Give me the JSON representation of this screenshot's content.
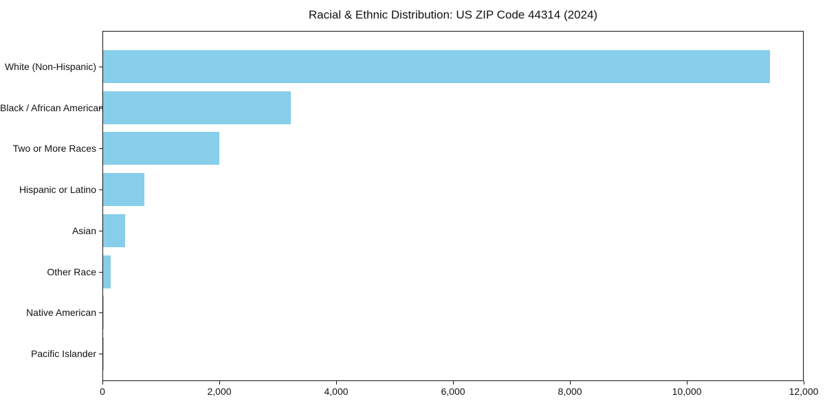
{
  "page": {
    "background_color": "#ffffff",
    "text_color": "#111111",
    "axis_color": "#111111"
  },
  "chart_data": {
    "type": "bar",
    "orientation": "horizontal",
    "title": "Racial & Ethnic Distribution: US ZIP Code 44314 (2024)",
    "xlabel": "",
    "ylabel": "",
    "grid": false,
    "bar_color": "#87CEEB",
    "xlim": [
      0,
      12000
    ],
    "categories": [
      "White (Non-Hispanic)",
      "Black / African American",
      "Two or More Races",
      "Hispanic or Latino",
      "Asian",
      "Other Race",
      "Native American",
      "Pacific Islander"
    ],
    "values": [
      11430,
      3220,
      1990,
      705,
      375,
      130,
      15,
      5
    ],
    "x_tick_values": [
      0,
      2000,
      4000,
      6000,
      8000,
      10000,
      12000
    ],
    "x_tick_labels": [
      "0",
      "2,000",
      "4,000",
      "6,000",
      "8,000",
      "10,000",
      "12,000"
    ]
  }
}
